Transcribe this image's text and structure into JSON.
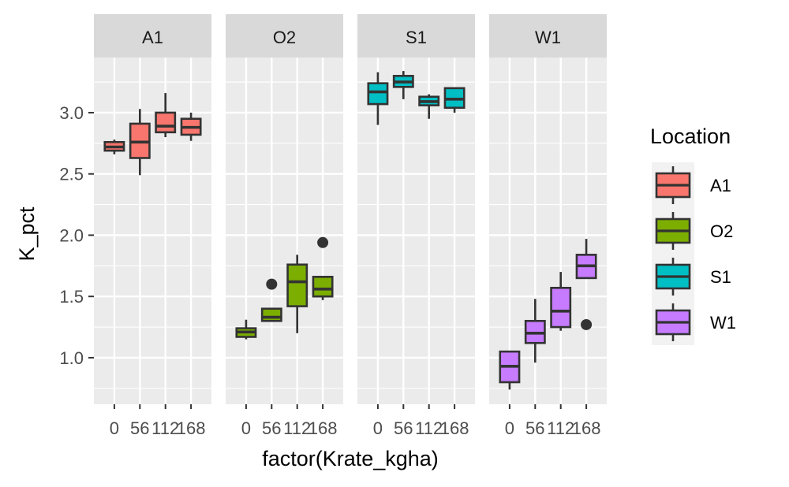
{
  "chart_data": {
    "type": "boxplot",
    "facet_variable": "Location",
    "xlabel": "factor(Krate_kgha)",
    "ylabel": "K_pct",
    "ylim": [
      0.62,
      3.45
    ],
    "y_ticks": [
      1.0,
      1.5,
      2.0,
      2.5,
      3.0
    ],
    "y_tick_labels": [
      "1.0",
      "1.5",
      "2.0",
      "2.5",
      "3.0"
    ],
    "categories": [
      "0",
      "56",
      "112",
      "168"
    ],
    "legend": {
      "title": "Location",
      "placement": "right",
      "entries": [
        {
          "label": "A1",
          "color": "#F8766D"
        },
        {
          "label": "O2",
          "color": "#7CAE00"
        },
        {
          "label": "S1",
          "color": "#00BFC4"
        },
        {
          "label": "W1",
          "color": "#C77CFF"
        }
      ]
    },
    "panels": [
      {
        "label": "A1",
        "color": "#F8766D",
        "boxes": [
          {
            "category": "0",
            "min": 2.66,
            "q1": 2.69,
            "median": 2.72,
            "q3": 2.76,
            "max": 2.78,
            "outliers": []
          },
          {
            "category": "56",
            "min": 2.49,
            "q1": 2.63,
            "median": 2.76,
            "q3": 2.91,
            "max": 3.03,
            "outliers": []
          },
          {
            "category": "112",
            "min": 2.8,
            "q1": 2.84,
            "median": 2.89,
            "q3": 3.0,
            "max": 3.16,
            "outliers": []
          },
          {
            "category": "168",
            "min": 2.77,
            "q1": 2.82,
            "median": 2.88,
            "q3": 2.95,
            "max": 3.0,
            "outliers": []
          }
        ]
      },
      {
        "label": "O2",
        "color": "#7CAE00",
        "boxes": [
          {
            "category": "0",
            "min": 1.15,
            "q1": 1.17,
            "median": 1.21,
            "q3": 1.24,
            "max": 1.31,
            "outliers": []
          },
          {
            "category": "56",
            "min": 1.3,
            "q1": 1.3,
            "median": 1.33,
            "q3": 1.4,
            "max": 1.4,
            "outliers": [
              1.6
            ]
          },
          {
            "category": "112",
            "min": 1.2,
            "q1": 1.42,
            "median": 1.62,
            "q3": 1.76,
            "max": 1.84,
            "outliers": []
          },
          {
            "category": "168",
            "min": 1.47,
            "q1": 1.5,
            "median": 1.56,
            "q3": 1.66,
            "max": 1.66,
            "outliers": [
              1.94
            ]
          }
        ]
      },
      {
        "label": "S1",
        "color": "#00BFC4",
        "boxes": [
          {
            "category": "0",
            "min": 2.9,
            "q1": 3.07,
            "median": 3.17,
            "q3": 3.24,
            "max": 3.33,
            "outliers": []
          },
          {
            "category": "56",
            "min": 3.11,
            "q1": 3.21,
            "median": 3.25,
            "q3": 3.3,
            "max": 3.34,
            "outliers": []
          },
          {
            "category": "112",
            "min": 2.95,
            "q1": 3.06,
            "median": 3.09,
            "q3": 3.13,
            "max": 3.15,
            "outliers": []
          },
          {
            "category": "168",
            "min": 3.0,
            "q1": 3.04,
            "median": 3.11,
            "q3": 3.2,
            "max": 3.2,
            "outliers": []
          }
        ]
      },
      {
        "label": "W1",
        "color": "#C77CFF",
        "boxes": [
          {
            "category": "0",
            "min": 0.74,
            "q1": 0.8,
            "median": 0.93,
            "q3": 1.05,
            "max": 1.05,
            "outliers": []
          },
          {
            "category": "56",
            "min": 0.96,
            "q1": 1.12,
            "median": 1.2,
            "q3": 1.3,
            "max": 1.48,
            "outliers": []
          },
          {
            "category": "112",
            "min": 1.22,
            "q1": 1.25,
            "median": 1.38,
            "q3": 1.57,
            "max": 1.7,
            "outliers": []
          },
          {
            "category": "168",
            "min": 1.65,
            "q1": 1.65,
            "median": 1.75,
            "q3": 1.84,
            "max": 1.97,
            "outliers": [
              1.27
            ]
          }
        ]
      }
    ]
  }
}
